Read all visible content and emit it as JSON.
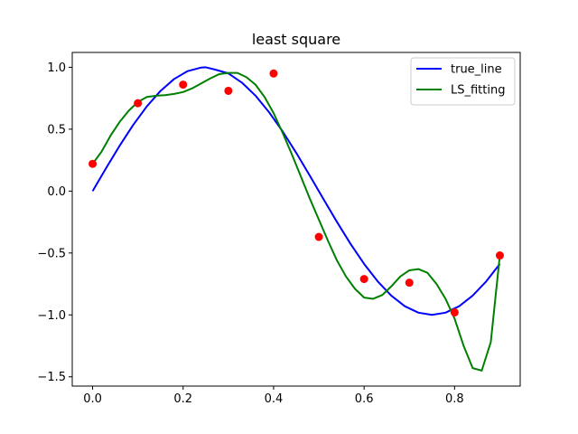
{
  "chart_data": {
    "type": "line",
    "title": "least square",
    "xlabel": "",
    "ylabel": "",
    "xlim": [
      -0.045,
      0.945
    ],
    "ylim": [
      -1.575,
      1.12
    ],
    "xticks": [
      0.0,
      0.2,
      0.4,
      0.6,
      0.8
    ],
    "xtick_labels": [
      "0.0",
      "0.2",
      "0.4",
      "0.6",
      "0.8"
    ],
    "yticks": [
      -1.5,
      -1.0,
      -0.5,
      0.0,
      0.5,
      1.0
    ],
    "ytick_labels": [
      "−1.5",
      "−1.0",
      "−0.5",
      "0.0",
      "0.5",
      "1.0"
    ],
    "grid": false,
    "legend_position": "top-right",
    "series": [
      {
        "name": "true_line",
        "kind": "line",
        "color": "#0000ff",
        "x": [
          0.0,
          0.03,
          0.06,
          0.09,
          0.12,
          0.15,
          0.18,
          0.21,
          0.24,
          0.25,
          0.27,
          0.3,
          0.33,
          0.36,
          0.39,
          0.42,
          0.45,
          0.48,
          0.51,
          0.54,
          0.57,
          0.6,
          0.63,
          0.66,
          0.69,
          0.72,
          0.75,
          0.78,
          0.81,
          0.84,
          0.87,
          0.9
        ],
        "y": [
          0.0,
          0.187,
          0.368,
          0.536,
          0.685,
          0.809,
          0.905,
          0.969,
          0.998,
          1.0,
          0.982,
          0.951,
          0.876,
          0.771,
          0.637,
          0.482,
          0.309,
          0.125,
          -0.063,
          -0.249,
          -0.426,
          -0.588,
          -0.729,
          -0.844,
          -0.93,
          -0.982,
          -1.0,
          -0.982,
          -0.93,
          -0.844,
          -0.729,
          -0.588
        ]
      },
      {
        "name": "LS_fitting",
        "kind": "line",
        "color": "#008000",
        "x": [
          0.0,
          0.02,
          0.04,
          0.06,
          0.08,
          0.1,
          0.12,
          0.14,
          0.16,
          0.18,
          0.2,
          0.22,
          0.24,
          0.26,
          0.28,
          0.3,
          0.32,
          0.34,
          0.36,
          0.38,
          0.4,
          0.42,
          0.44,
          0.46,
          0.48,
          0.5,
          0.52,
          0.54,
          0.56,
          0.58,
          0.6,
          0.62,
          0.64,
          0.66,
          0.68,
          0.7,
          0.72,
          0.74,
          0.76,
          0.78,
          0.8,
          0.82,
          0.84,
          0.86,
          0.88,
          0.9
        ],
        "y": [
          0.22,
          0.32,
          0.45,
          0.56,
          0.65,
          0.72,
          0.76,
          0.77,
          0.775,
          0.785,
          0.8,
          0.83,
          0.87,
          0.91,
          0.945,
          0.955,
          0.955,
          0.92,
          0.86,
          0.76,
          0.63,
          0.47,
          0.3,
          0.12,
          -0.06,
          -0.23,
          -0.4,
          -0.56,
          -0.69,
          -0.79,
          -0.86,
          -0.87,
          -0.84,
          -0.77,
          -0.69,
          -0.64,
          -0.63,
          -0.66,
          -0.75,
          -0.87,
          -1.03,
          -1.25,
          -1.43,
          -1.45,
          -1.22,
          -0.52
        ]
      },
      {
        "name": "",
        "kind": "scatter",
        "color": "#ff0000",
        "x": [
          0.0,
          0.1,
          0.2,
          0.3,
          0.4,
          0.5,
          0.6,
          0.7,
          0.8,
          0.9
        ],
        "y": [
          0.22,
          0.71,
          0.86,
          0.81,
          0.95,
          -0.37,
          -0.71,
          -0.74,
          -0.98,
          -0.52
        ]
      }
    ]
  }
}
